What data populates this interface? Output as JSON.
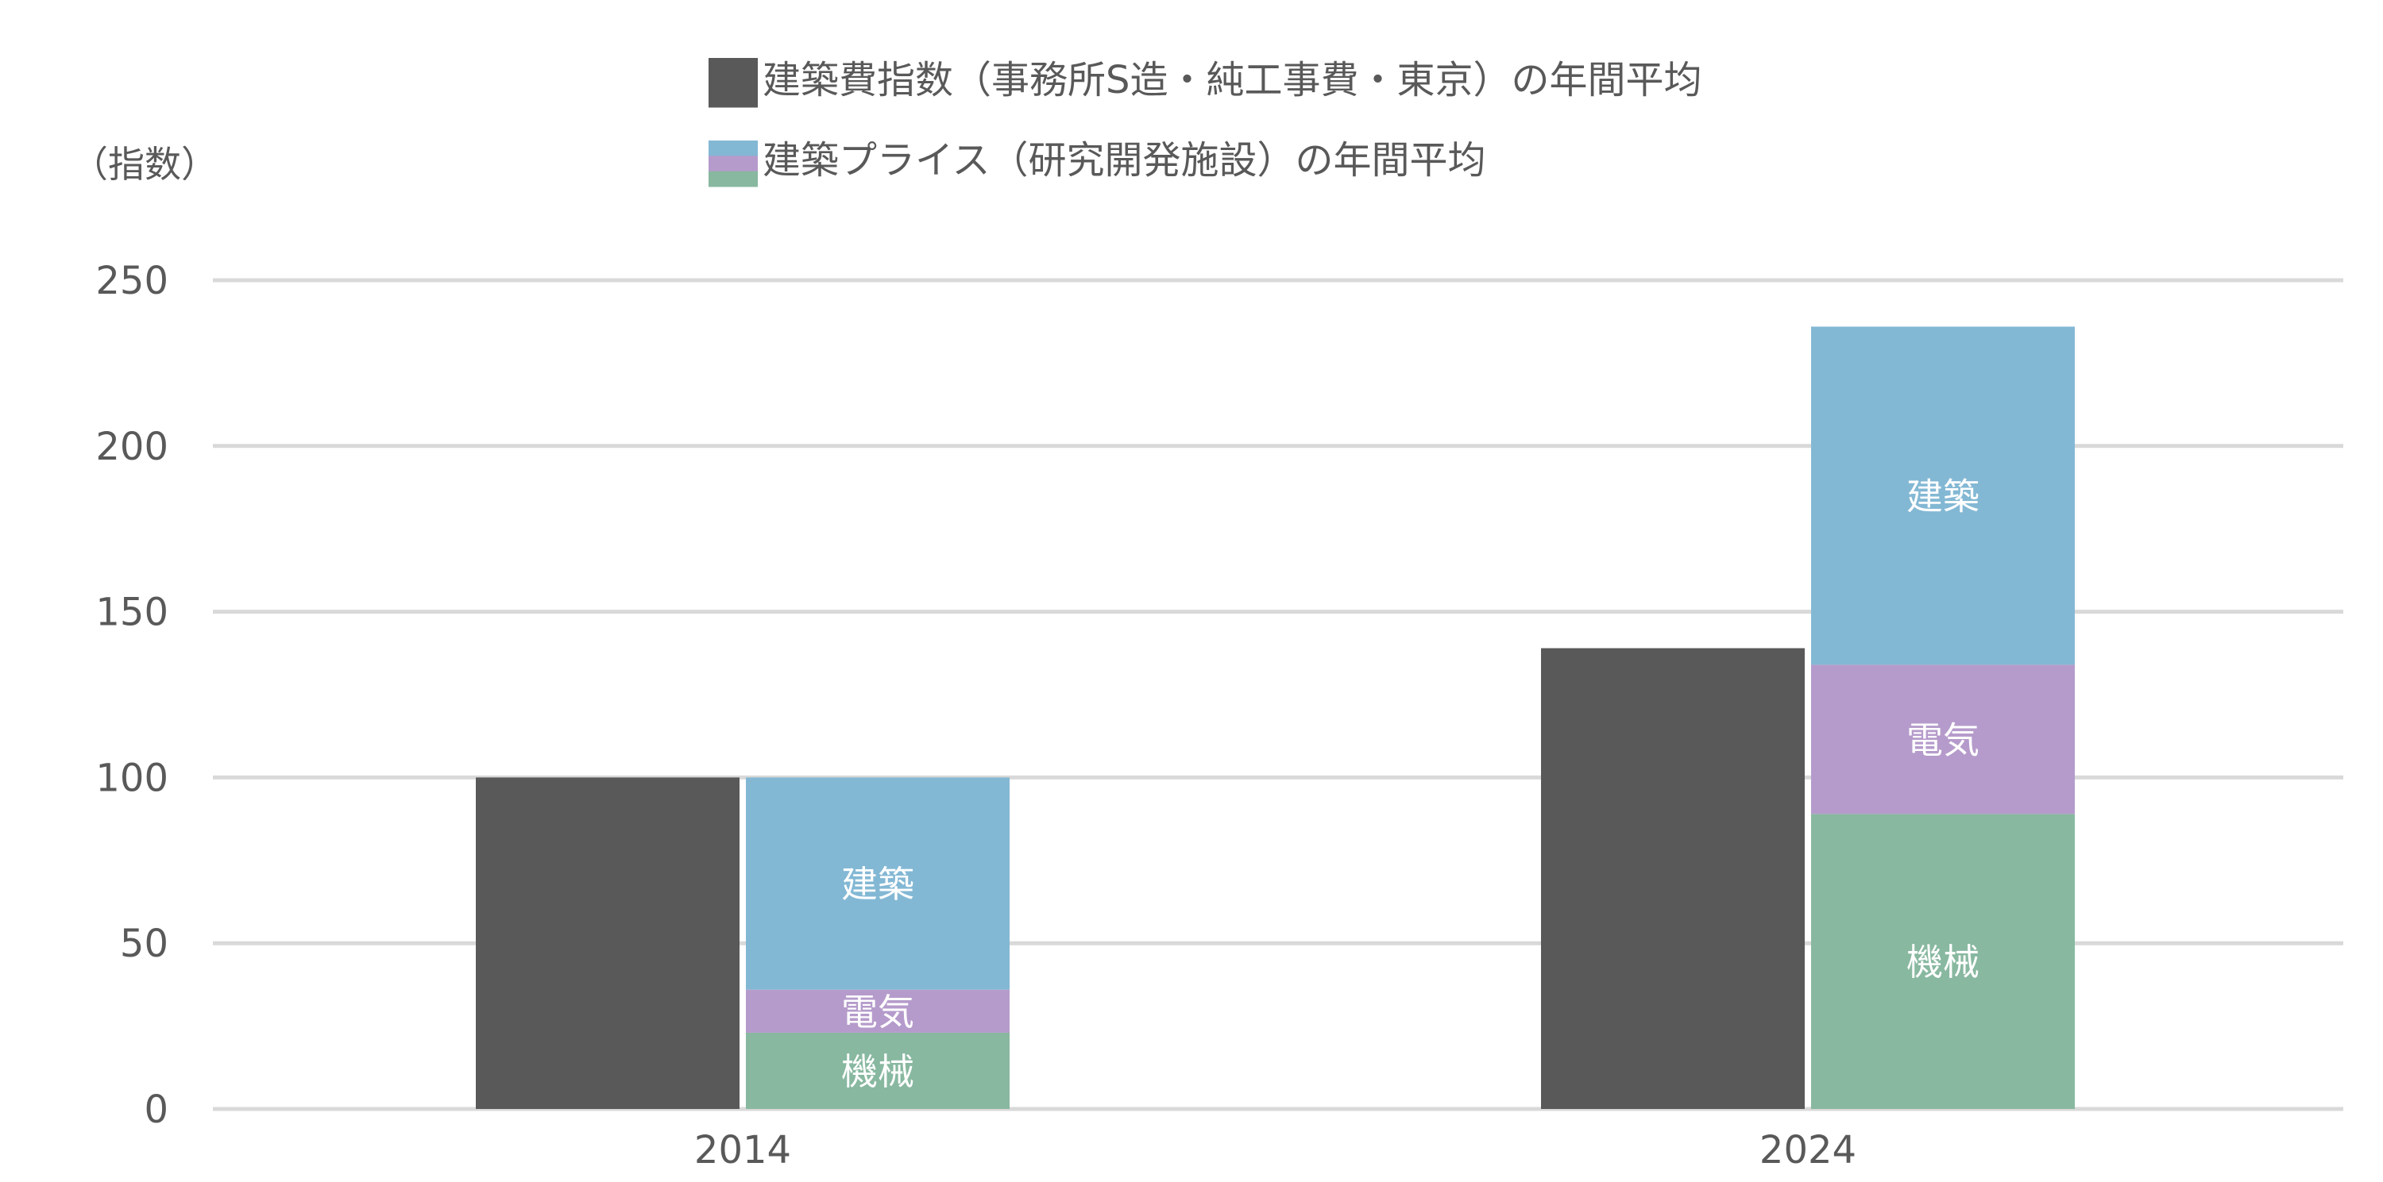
{
  "chart_data": {
    "type": "bar",
    "ylabel": "（指数）",
    "ylim": [
      0,
      250
    ],
    "yticks": [
      0,
      50,
      100,
      150,
      200,
      250
    ],
    "grid": true,
    "legend_position": "top-center",
    "categories": [
      "2014",
      "2024"
    ],
    "legend": [
      {
        "label": "建築費指数（事務所S造・純工事費・東京）の年間平均",
        "colors": [
          "#595959"
        ]
      },
      {
        "label": "建築プライス（研究開発施設）の年間平均",
        "colors": [
          "#83b8d4",
          "#b59bcb",
          "#88b8a0"
        ]
      }
    ],
    "series": [
      {
        "name": "建築費指数（事務所S造・純工事費・東京）の年間平均",
        "stack": "index",
        "color": "#595959",
        "values": [
          100,
          139
        ]
      },
      {
        "name": "機械",
        "stack": "price",
        "color": "#88b8a0",
        "values": [
          23,
          89
        ]
      },
      {
        "name": "電気",
        "stack": "price",
        "color": "#b59bcb",
        "values": [
          13,
          45
        ]
      },
      {
        "name": "建築",
        "stack": "price",
        "color": "#83b8d4",
        "values": [
          64,
          102
        ]
      }
    ],
    "colors": {
      "grid": "#d9d9d9",
      "tick_text": "#595959",
      "legend_text": "#595959",
      "segment_label": "#ffffff"
    }
  }
}
